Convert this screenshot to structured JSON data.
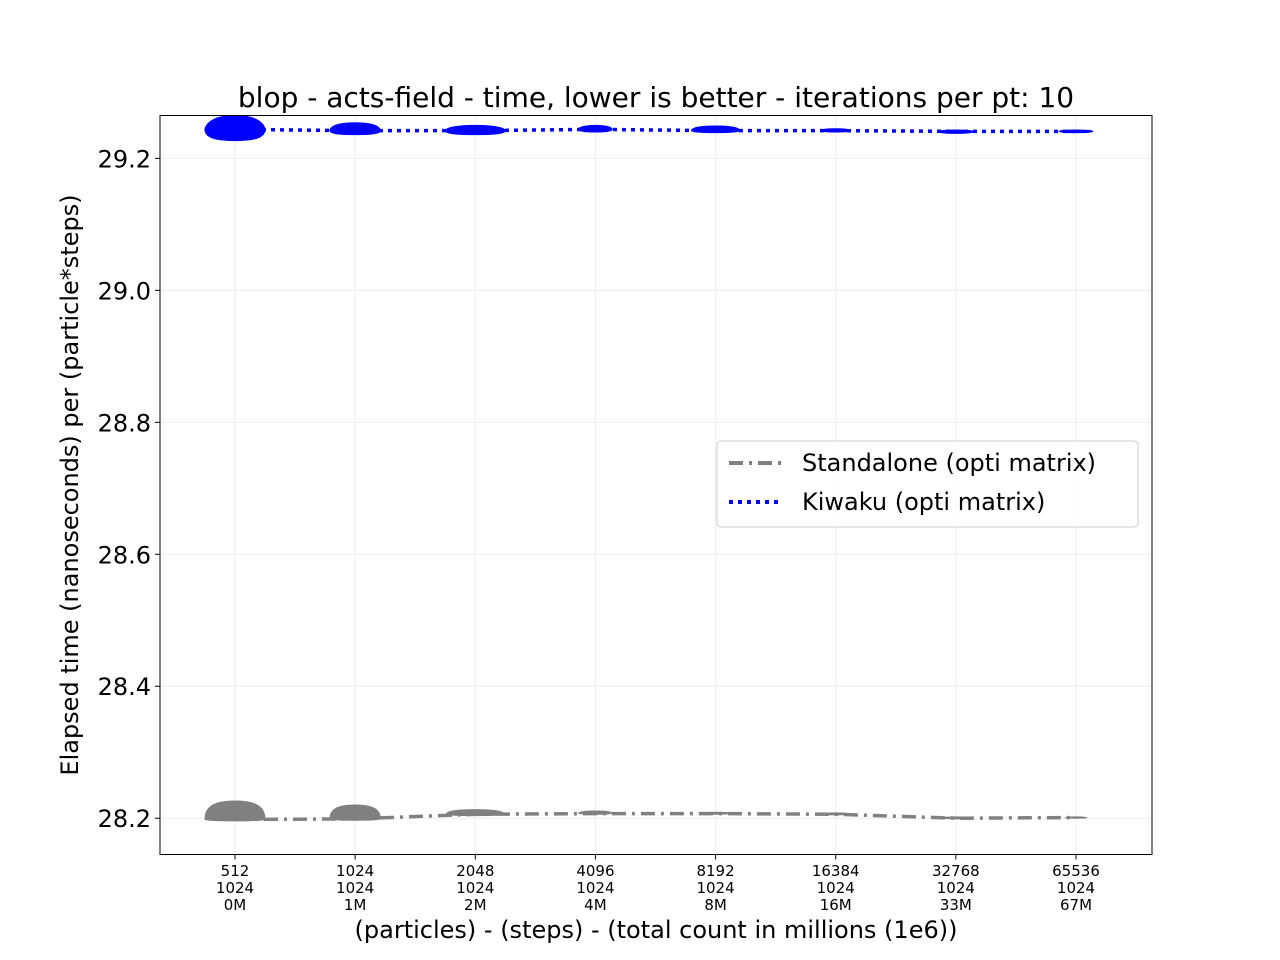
{
  "chart_data": {
    "type": "line",
    "title": "blop - acts-field - time, lower is better - iterations per pt: 10",
    "xlabel": "(particles) - (steps) - (total count in millions (1e6))",
    "ylabel": "Elapsed time (nanoseconds) per (particle*steps)",
    "categories": [
      {
        "particles": "512",
        "steps": "1024",
        "total": "0M"
      },
      {
        "particles": "1024",
        "steps": "1024",
        "total": "1M"
      },
      {
        "particles": "2048",
        "steps": "1024",
        "total": "2M"
      },
      {
        "particles": "4096",
        "steps": "1024",
        "total": "4M"
      },
      {
        "particles": "8192",
        "steps": "1024",
        "total": "8M"
      },
      {
        "particles": "16384",
        "steps": "1024",
        "total": "16M"
      },
      {
        "particles": "32768",
        "steps": "1024",
        "total": "33M"
      },
      {
        "particles": "65536",
        "steps": "1024",
        "total": "67M"
      }
    ],
    "ylim": [
      28.145,
      29.265
    ],
    "yticks": [
      "28.2",
      "28.4",
      "28.6",
      "28.8",
      "29.0",
      "29.2"
    ],
    "grid": true,
    "legend_position": "center-right",
    "series": [
      {
        "name": "Standalone (opti matrix)",
        "color": "#808080",
        "linestyle": "dashdot",
        "values": [
          28.198,
          28.199,
          28.206,
          28.207,
          28.207,
          28.206,
          28.2,
          28.201
        ],
        "violin_range": [
          [
            28.196,
            28.226
          ],
          [
            28.197,
            28.22
          ],
          [
            28.204,
            28.213
          ],
          [
            28.206,
            28.211
          ],
          [
            28.206,
            28.209
          ],
          [
            28.205,
            28.208
          ],
          [
            28.199,
            28.202
          ],
          [
            28.2,
            28.202
          ]
        ],
        "violin_halfwidth": [
          0.5,
          0.42,
          0.48,
          0.28,
          0.25,
          0.22,
          0.22,
          0.18
        ]
      },
      {
        "name": "Kiwaku (opti matrix)",
        "color": "#0000ff",
        "linestyle": "dotted",
        "values": [
          29.244,
          29.242,
          29.242,
          29.244,
          29.242,
          29.242,
          29.241,
          29.241
        ],
        "violin_range": [
          [
            29.227,
            29.265
          ],
          [
            29.236,
            29.254
          ],
          [
            29.236,
            29.25
          ],
          [
            29.24,
            29.25
          ],
          [
            29.239,
            29.249
          ],
          [
            29.24,
            29.245
          ],
          [
            29.238,
            29.243
          ],
          [
            29.239,
            29.243
          ]
        ],
        "violin_halfwidth": [
          0.5,
          0.42,
          0.5,
          0.28,
          0.4,
          0.25,
          0.3,
          0.28
        ]
      }
    ]
  }
}
